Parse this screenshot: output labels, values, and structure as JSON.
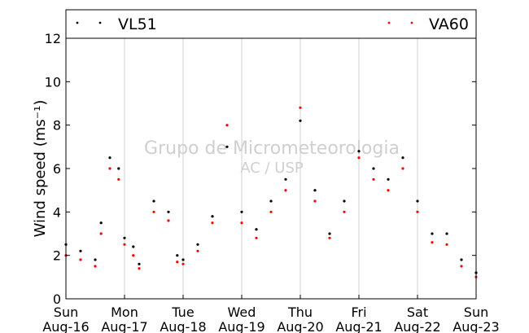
{
  "chart_data": {
    "type": "scatter",
    "ylabel": "Wind speed (ms⁻¹)",
    "ylim": [
      0,
      12
    ],
    "yticks": [
      0,
      2,
      4,
      6,
      8,
      10,
      12
    ],
    "xlim": [
      "2015-08-16",
      "2015-08-23"
    ],
    "grid": "vertical lines at each day",
    "legend": {
      "placement": "top (banner above plot)",
      "entries": [
        {
          "name": "VL51",
          "color": "#000000"
        },
        {
          "name": "VA60",
          "color": "#ff0000"
        }
      ]
    },
    "xticks": [
      {
        "day": "Sun",
        "date": "Aug-16"
      },
      {
        "day": "Mon",
        "date": "Aug-17"
      },
      {
        "day": "Tue",
        "date": "Aug-18"
      },
      {
        "day": "Wed",
        "date": "Aug-19"
      },
      {
        "day": "Thu",
        "date": "Aug-20"
      },
      {
        "day": "Fri",
        "date": "Aug-21"
      },
      {
        "day": "Sat",
        "date": "Aug-22"
      },
      {
        "day": "Sun",
        "date": "Aug-23"
      }
    ],
    "watermark": [
      "Grupo de Micrometeorologia",
      "AC / USP"
    ],
    "series": [
      {
        "name": "VL51",
        "color": "#000000",
        "x_day_offsets": [
          0,
          0.25,
          0.5,
          0.6,
          0.75,
          0.9,
          1,
          1.15,
          1.25,
          1.5,
          1.75,
          1.9,
          2,
          2.25,
          2.5,
          2.75,
          3,
          3.25,
          3.5,
          3.75,
          4,
          4.25,
          4.5,
          4.75,
          5,
          5.25,
          5.5,
          5.75,
          6,
          6.25,
          6.5,
          6.75,
          7
        ],
        "values": [
          2.5,
          2.2,
          1.8,
          3.5,
          6.5,
          6,
          2.8,
          2.4,
          1.6,
          4.5,
          4,
          2,
          1.8,
          2.5,
          3.8,
          7,
          4,
          3.2,
          4.5,
          5.5,
          8.2,
          5,
          3,
          4.5,
          6.8,
          6,
          5.5,
          6.5,
          4.5,
          3,
          3,
          1.8,
          1.2
        ]
      },
      {
        "name": "VA60",
        "color": "#ff0000",
        "x_day_offsets": [
          0,
          0.25,
          0.5,
          0.6,
          0.75,
          0.9,
          1,
          1.15,
          1.25,
          1.5,
          1.75,
          1.9,
          2,
          2.25,
          2.5,
          2.75,
          3,
          3.25,
          3.5,
          3.75,
          4,
          4.25,
          4.5,
          4.75,
          5,
          5.25,
          5.5,
          5.75,
          6,
          6.25,
          6.5,
          6.75,
          7
        ],
        "values": [
          2,
          1.8,
          1.5,
          3,
          6,
          5.5,
          2.5,
          2,
          1.4,
          4,
          3.6,
          1.7,
          1.6,
          2.2,
          3.5,
          8,
          3.5,
          2.8,
          4,
          5,
          8.8,
          4.5,
          2.8,
          4,
          6.5,
          5.5,
          5,
          6,
          4,
          2.6,
          2.5,
          1.5,
          1
        ]
      }
    ]
  }
}
